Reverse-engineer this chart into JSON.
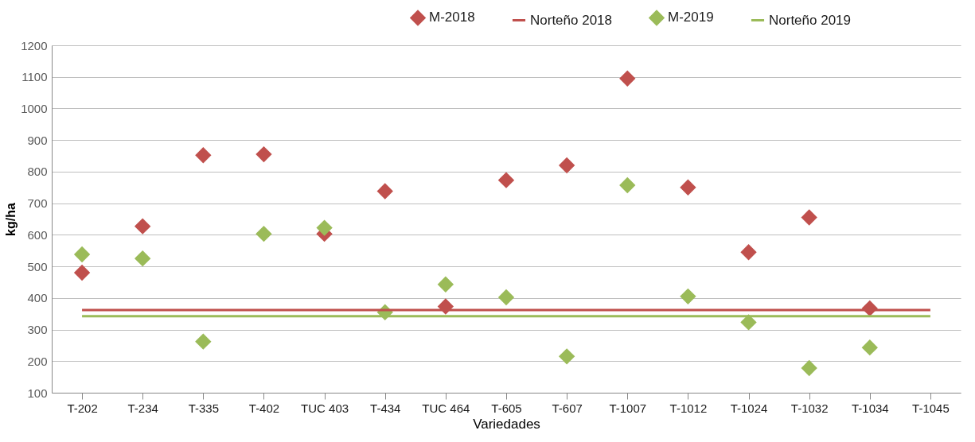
{
  "chart_data": {
    "type": "scatter",
    "xlabel": "Variedades",
    "ylabel": "kg/ha",
    "categories": [
      "T-202",
      "T-234",
      "T-335",
      "T-402",
      "TUC 403",
      "T-434",
      "TUC 464",
      "T-605",
      "T-607",
      "T-1007",
      "T-1012",
      "T-1024",
      "T-1032",
      "T-1034",
      "T-1045"
    ],
    "series": [
      {
        "name": "M-2018",
        "color": "#c0504d",
        "values": [
          480,
          627,
          852,
          855,
          603,
          738,
          373,
          773,
          820,
          1095,
          750,
          545,
          655,
          367,
          null
        ]
      },
      {
        "name": "Norteño 2018",
        "type": "line",
        "marker": "none",
        "line_style": "solid",
        "color": "#c0504d",
        "values": [
          362,
          362,
          362,
          362,
          362,
          362,
          362,
          362,
          362,
          362,
          362,
          362,
          362,
          362,
          362
        ]
      },
      {
        "name": "M-2019",
        "color": "#9bbb59",
        "values": [
          538,
          525,
          262,
          603,
          622,
          355,
          443,
          402,
          215,
          757,
          405,
          323,
          178,
          243,
          null
        ]
      },
      {
        "name": "Norteño 2019",
        "type": "line",
        "marker": "none",
        "line_style": "solid",
        "color": "#9bbb59",
        "values": [
          342,
          342,
          342,
          342,
          342,
          342,
          342,
          342,
          342,
          342,
          342,
          342,
          342,
          342,
          342
        ]
      }
    ],
    "ylim": [
      100,
      1200
    ],
    "yticks": [
      100,
      200,
      300,
      400,
      500,
      600,
      700,
      800,
      900,
      1000,
      1100,
      1200
    ],
    "grid": "y",
    "legend": "top right",
    "marker": "diamond"
  }
}
